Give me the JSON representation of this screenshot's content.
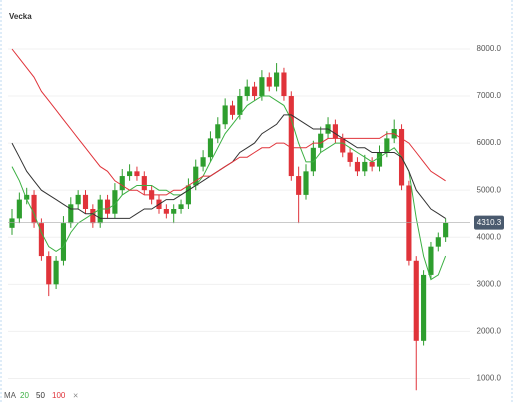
{
  "chart_data": {
    "type": "candlestick",
    "title": "Vecka",
    "ylim": [
      500,
      9040
    ],
    "yticks": [
      {
        "value": 1000,
        "label": "1000.0"
      },
      {
        "value": 2000,
        "label": "2000.0"
      },
      {
        "value": 3000,
        "label": "3000.0"
      },
      {
        "value": 4000,
        "label": "4000.0"
      },
      {
        "value": 5000,
        "label": "5000.0"
      },
      {
        "value": 6000,
        "label": "6000.0"
      },
      {
        "value": 7000,
        "label": "7000.0"
      },
      {
        "value": 8000,
        "label": "8000.0"
      }
    ],
    "grid": true,
    "up_color": "#2e9e2e",
    "down_color": "#e0333a",
    "last_price": 4310.3,
    "candles": {
      "open": [
        4200,
        4400,
        4800,
        4900,
        4300,
        3600,
        3000,
        3500,
        4300,
        4700,
        4900,
        4600,
        4300,
        4800,
        4500,
        5000,
        5300,
        5400,
        5300,
        5000,
        4800,
        4600,
        4500,
        4600,
        4700,
        5100,
        5500,
        5700,
        6100,
        6400,
        6800,
        6600,
        7000,
        7200,
        7000,
        7400,
        7200,
        7500,
        7000,
        5300,
        4900,
        5400,
        5900,
        6200,
        6400,
        6100,
        5800,
        5600,
        5400,
        5600,
        5500,
        5800,
        6100,
        6300,
        5100,
        3500,
        1800,
        3200,
        3800,
        4000
      ],
      "high": [
        4600,
        4950,
        5050,
        5000,
        4400,
        3700,
        3600,
        4450,
        4850,
        5000,
        5000,
        4700,
        4900,
        4900,
        5150,
        5450,
        5550,
        5500,
        5400,
        5100,
        4900,
        4700,
        4700,
        4800,
        5250,
        5650,
        5850,
        6250,
        6550,
        6950,
        6900,
        7150,
        7350,
        7300,
        7550,
        7500,
        7700,
        7600,
        7100,
        5500,
        5550,
        6050,
        6350,
        6550,
        6500,
        6200,
        5900,
        5700,
        5750,
        5700,
        5950,
        6250,
        6500,
        6400,
        5200,
        3600,
        3300,
        3900,
        4100,
        4400
      ],
      "low": [
        4050,
        4300,
        4700,
        4200,
        3500,
        2750,
        2900,
        3400,
        4200,
        4600,
        4500,
        4200,
        4200,
        4400,
        4400,
        4900,
        5200,
        5200,
        4900,
        4700,
        4500,
        4400,
        4300,
        4500,
        4600,
        5000,
        5400,
        5600,
        6000,
        6300,
        6500,
        6500,
        6900,
        6900,
        6900,
        7100,
        7100,
        6900,
        5200,
        4300,
        4800,
        5300,
        5800,
        6100,
        6000,
        5700,
        5500,
        5300,
        5300,
        5400,
        5400,
        5700,
        6000,
        5000,
        3400,
        750,
        1700,
        3100,
        3700,
        3900
      ],
      "close": [
        4400,
        4800,
        4900,
        4300,
        3600,
        3000,
        3500,
        4300,
        4700,
        4900,
        4600,
        4300,
        4800,
        4500,
        5000,
        5300,
        5400,
        5300,
        5000,
        4800,
        4600,
        4500,
        4600,
        4700,
        5100,
        5500,
        5700,
        6100,
        6400,
        6800,
        6600,
        7000,
        7200,
        7000,
        7400,
        7200,
        7500,
        7000,
        5300,
        4900,
        5400,
        5900,
        6200,
        6400,
        6100,
        5800,
        5600,
        5400,
        5600,
        5500,
        5800,
        6100,
        6300,
        5100,
        3500,
        1800,
        3200,
        3800,
        4000,
        4310.3
      ]
    },
    "legend_title": "MA",
    "legend_close": "×",
    "series": [
      {
        "name": "20",
        "color": "#3cb043",
        "values": [
          5500,
          5200,
          4800,
          4500,
          4100,
          3800,
          3700,
          3800,
          4100,
          4300,
          4400,
          4500,
          4600,
          4600,
          4700,
          4900,
          5000,
          5100,
          5100,
          5100,
          5000,
          5000,
          4900,
          4900,
          5000,
          5100,
          5300,
          5600,
          5900,
          6200,
          6400,
          6600,
          6800,
          6900,
          7000,
          7000,
          6900,
          6800,
          6500,
          6000,
          5600,
          5600,
          5800,
          5900,
          6000,
          6000,
          5900,
          5800,
          5700,
          5600,
          5700,
          5800,
          5900,
          5700,
          5400,
          4400,
          3600,
          3100,
          3200,
          3600
        ]
      },
      {
        "name": "50",
        "color": "#333333",
        "values": [
          6000,
          5700,
          5400,
          5200,
          5000,
          4900,
          4800,
          4700,
          4600,
          4600,
          4500,
          4500,
          4400,
          4400,
          4400,
          4400,
          4400,
          4500,
          4600,
          4600,
          4700,
          4800,
          4800,
          4900,
          5000,
          5100,
          5200,
          5300,
          5400,
          5500,
          5600,
          5800,
          5900,
          6000,
          6200,
          6300,
          6400,
          6600,
          6600,
          6500,
          6400,
          6300,
          6300,
          6300,
          6200,
          6100,
          6000,
          5900,
          5900,
          5800,
          5800,
          5800,
          5800,
          5700,
          5400,
          5000,
          4800,
          4600,
          4500,
          4400
        ]
      },
      {
        "name": "100",
        "color": "#e0333a",
        "values": [
          8000,
          7800,
          7600,
          7400,
          7100,
          6900,
          6700,
          6500,
          6300,
          6100,
          5900,
          5700,
          5500,
          5400,
          5200,
          5100,
          5000,
          5000,
          4900,
          4900,
          4900,
          4900,
          5000,
          5000,
          5100,
          5200,
          5300,
          5300,
          5400,
          5500,
          5600,
          5700,
          5700,
          5800,
          5900,
          5900,
          6000,
          6000,
          5900,
          5900,
          5900,
          6000,
          6000,
          6100,
          6100,
          6100,
          6100,
          6100,
          6100,
          6100,
          6100,
          6200,
          6200,
          6100,
          6000,
          5800,
          5600,
          5400,
          5300,
          5200
        ]
      }
    ]
  }
}
